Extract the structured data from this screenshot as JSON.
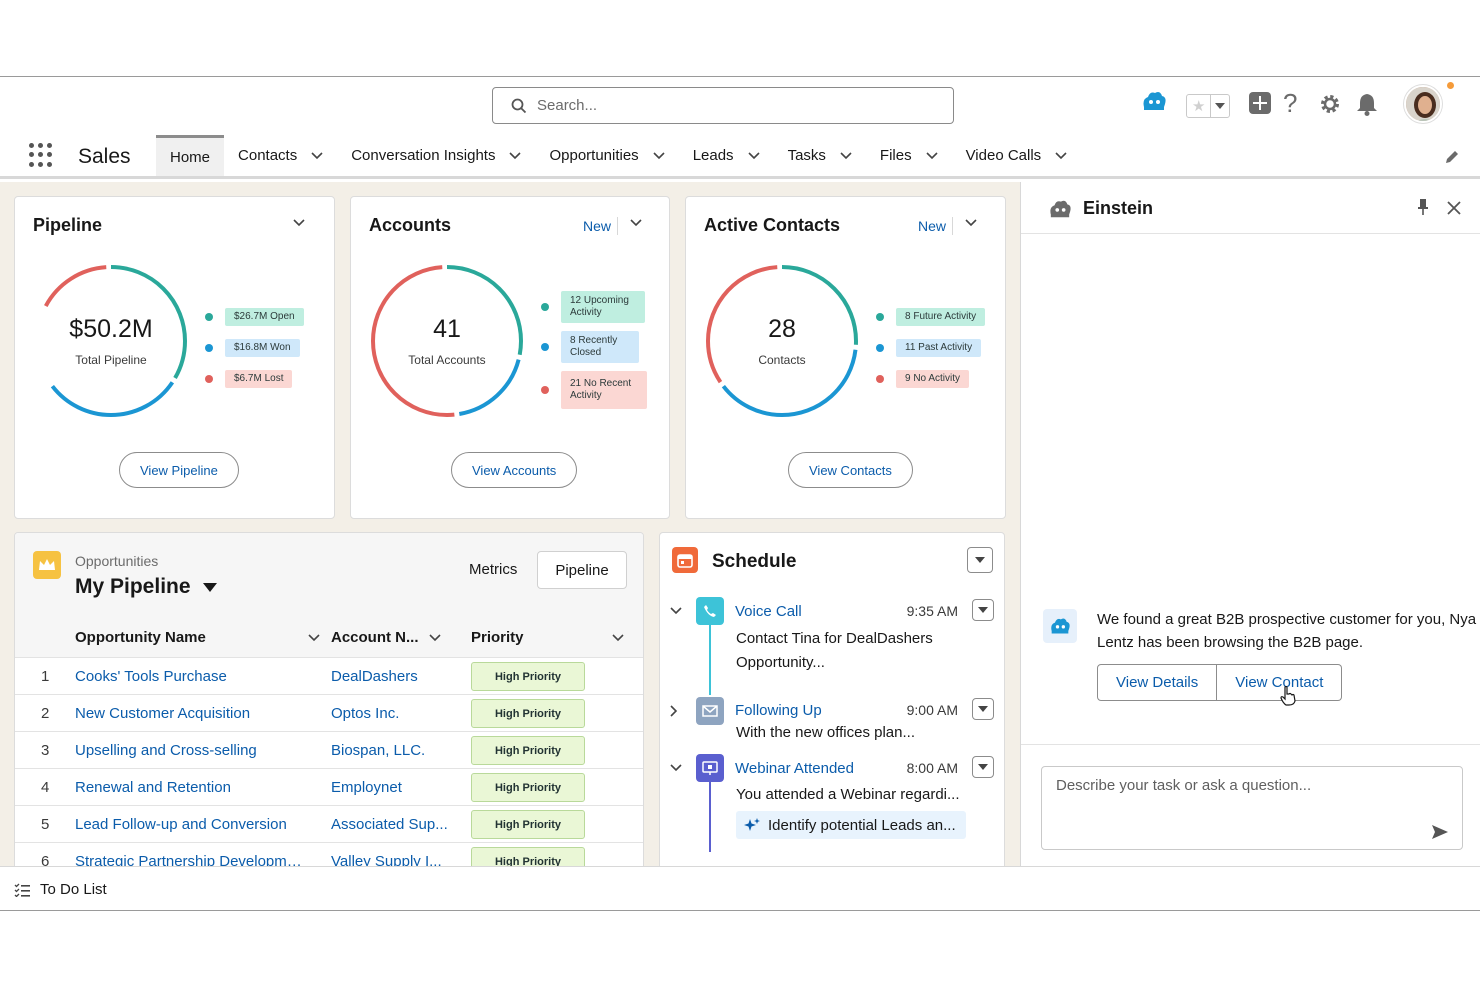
{
  "header": {
    "search_placeholder": "Search...",
    "icons": [
      "einstein-icon",
      "favorites-star-icon",
      "add-icon",
      "help-icon",
      "setup-gear-icon",
      "notifications-bell-icon",
      "user-avatar"
    ]
  },
  "nav": {
    "app_name": "Sales",
    "items": [
      {
        "label": "Home",
        "active": true
      },
      {
        "label": "Contacts"
      },
      {
        "label": "Conversation Insights"
      },
      {
        "label": "Opportunities"
      },
      {
        "label": "Leads"
      },
      {
        "label": "Tasks"
      },
      {
        "label": "Files"
      },
      {
        "label": "Video Calls"
      }
    ]
  },
  "cards": {
    "pipeline": {
      "title": "Pipeline",
      "value": "$50.2M",
      "label": "Total Pipeline",
      "legend": [
        "$26.7M Open",
        "$16.8M Won",
        "$6.7M Lost"
      ],
      "button": "View Pipeline"
    },
    "accounts": {
      "title": "Accounts",
      "new": "New",
      "value": "41",
      "label": "Total Accounts",
      "legend": [
        "12 Upcoming Activity",
        "8 Recently Closed",
        "21 No Recent Activity"
      ],
      "button": "View Accounts"
    },
    "contacts": {
      "title": "Active Contacts",
      "new": "New",
      "value": "28",
      "label": "Contacts",
      "legend": [
        "8 Future Activity",
        "11 Past Activity",
        "9 No Activity"
      ],
      "button": "View Contacts"
    }
  },
  "colors": {
    "teal": "#2aa89a",
    "blue": "#1b96d3",
    "red": "#e0615c",
    "link": "#0b5cab"
  },
  "opportunities": {
    "object_label": "Opportunities",
    "list_name": "My Pipeline",
    "metrics": "Metrics",
    "pipeline_btn": "Pipeline",
    "columns": [
      "Opportunity Name",
      "Account N...",
      "Priority"
    ],
    "rows": [
      {
        "num": "1",
        "name": "Cooks' Tools Purchase",
        "account": "DealDashers",
        "priority": "High Priority"
      },
      {
        "num": "2",
        "name": "New Customer Acquisition",
        "account": "Optos Inc.",
        "priority": "High Priority"
      },
      {
        "num": "3",
        "name": "Upselling and Cross-selling",
        "account": "Biospan, LLC.",
        "priority": "High Priority"
      },
      {
        "num": "4",
        "name": "Renewal and Retention",
        "account": "Employnet",
        "priority": "High Priority"
      },
      {
        "num": "5",
        "name": "Lead Follow-up and Conversion",
        "account": "Associated Sup...",
        "priority": "High Priority"
      },
      {
        "num": "6",
        "name": "Strategic Partnership Developme...",
        "account": "Valley Supply I...",
        "priority": "High Priority"
      }
    ]
  },
  "schedule": {
    "title": "Schedule",
    "events": [
      {
        "title": "Voice Call",
        "time": "9:35 AM",
        "body": "Contact Tina for DealDashers Opportunity..."
      },
      {
        "title": "Following Up",
        "time": "9:00 AM",
        "body": "With the new offices plan..."
      },
      {
        "title": "Webinar Attended",
        "time": "8:00 AM",
        "body": "You attended a Webinar regardi...",
        "suggestion": "Identify potential Leads an..."
      }
    ]
  },
  "einstein": {
    "title": "Einstein",
    "message": "We found a great B2B prospective customer for you, Nya Lentz has been browsing the B2B page.",
    "btn_details": "View Details",
    "btn_contact": "View Contact",
    "input_placeholder": "Describe your task or ask a question..."
  },
  "utility": {
    "todo": "To Do List"
  }
}
